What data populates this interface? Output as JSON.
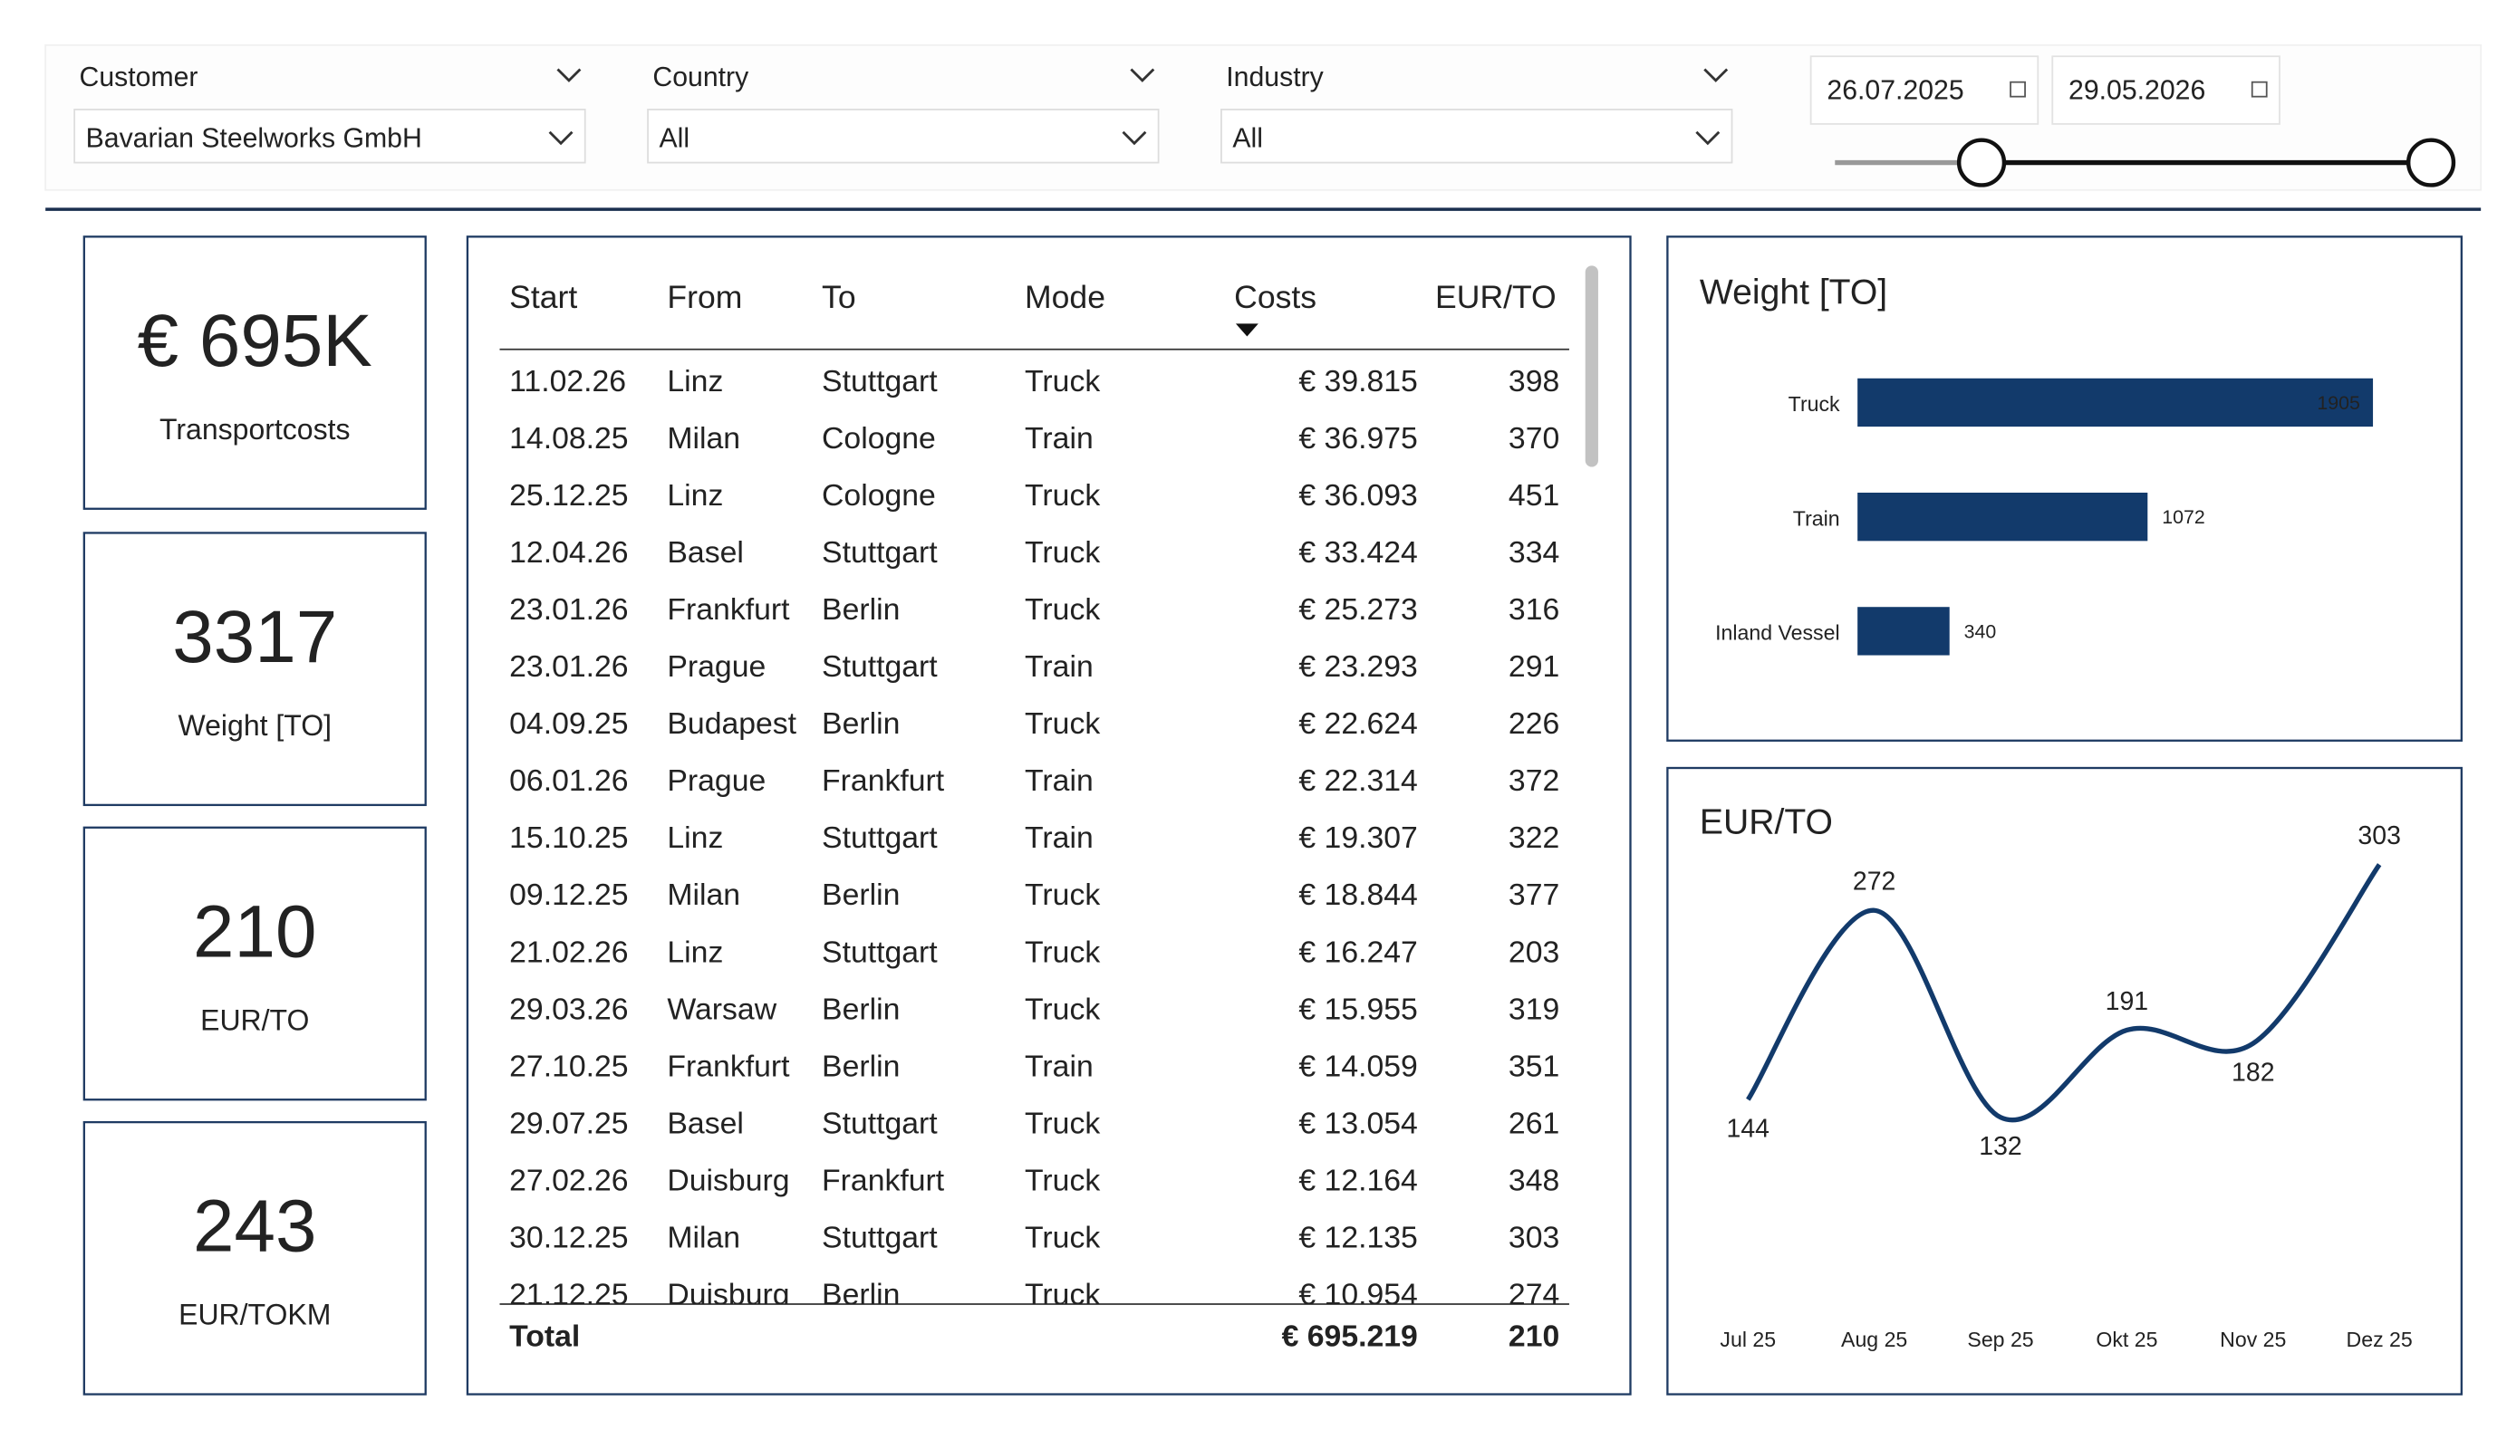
{
  "filters": [
    {
      "label": "Customer",
      "value": "Bavarian Steelworks GmbH"
    },
    {
      "label": "Country",
      "value": "All"
    },
    {
      "label": "Industry",
      "value": "All"
    }
  ],
  "date_range": {
    "start": "26.07.2025",
    "end": "29.05.2026"
  },
  "kpis": [
    {
      "value": "€ 695K",
      "label": "Transportcosts"
    },
    {
      "value": 3317,
      "label": "Weight [TO]"
    },
    {
      "value": 210,
      "label": "EUR/TO"
    },
    {
      "value": 243,
      "label": "EUR/TOKM"
    }
  ],
  "table": {
    "columns": [
      "Start",
      "From",
      "To",
      "Mode",
      "Costs",
      "EUR/TO"
    ],
    "rows": [
      [
        "11.02.26",
        "Linz",
        "Stuttgart",
        "Truck",
        "€ 39.815",
        398
      ],
      [
        "14.08.25",
        "Milan",
        "Cologne",
        "Train",
        "€ 36.975",
        370
      ],
      [
        "25.12.25",
        "Linz",
        "Cologne",
        "Truck",
        "€ 36.093",
        451
      ],
      [
        "12.04.26",
        "Basel",
        "Stuttgart",
        "Truck",
        "€ 33.424",
        334
      ],
      [
        "23.01.26",
        "Frankfurt",
        "Berlin",
        "Truck",
        "€ 25.273",
        316
      ],
      [
        "23.01.26",
        "Prague",
        "Stuttgart",
        "Train",
        "€ 23.293",
        291
      ],
      [
        "04.09.25",
        "Budapest",
        "Berlin",
        "Truck",
        "€ 22.624",
        226
      ],
      [
        "06.01.26",
        "Prague",
        "Frankfurt",
        "Train",
        "€ 22.314",
        372
      ],
      [
        "15.10.25",
        "Linz",
        "Stuttgart",
        "Train",
        "€ 19.307",
        322
      ],
      [
        "09.12.25",
        "Milan",
        "Berlin",
        "Truck",
        "€ 18.844",
        377
      ],
      [
        "21.02.26",
        "Linz",
        "Stuttgart",
        "Truck",
        "€ 16.247",
        203
      ],
      [
        "29.03.26",
        "Warsaw",
        "Berlin",
        "Truck",
        "€ 15.955",
        319
      ],
      [
        "27.10.25",
        "Frankfurt",
        "Berlin",
        "Train",
        "€ 14.059",
        351
      ],
      [
        "29.07.25",
        "Basel",
        "Stuttgart",
        "Truck",
        "€ 13.054",
        261
      ],
      [
        "27.02.26",
        "Duisburg",
        "Frankfurt",
        "Truck",
        "€ 12.164",
        348
      ],
      [
        "30.12.25",
        "Milan",
        "Stuttgart",
        "Truck",
        "€ 12.135",
        303
      ],
      [
        "21.12.25",
        "Duisburg",
        "Berlin",
        "Truck",
        "€ 10.954",
        274
      ]
    ],
    "total": {
      "label": "Total",
      "costs": "€ 695.219",
      "eur_to": 210
    }
  },
  "chart_data": [
    {
      "type": "bar",
      "title": "Weight [TO]",
      "categories": [
        "Truck",
        "Train",
        "Inland Vessel"
      ],
      "values": [
        1905,
        1072,
        340
      ],
      "color": "#123a6b"
    },
    {
      "type": "line",
      "title": "EUR/TO",
      "categories": [
        "Jul 25",
        "Aug 25",
        "Sep 25",
        "Okt 25",
        "Nov 25",
        "Dez 25"
      ],
      "values": [
        144,
        272,
        132,
        191,
        182,
        303
      ],
      "color": "#123a6b"
    }
  ]
}
